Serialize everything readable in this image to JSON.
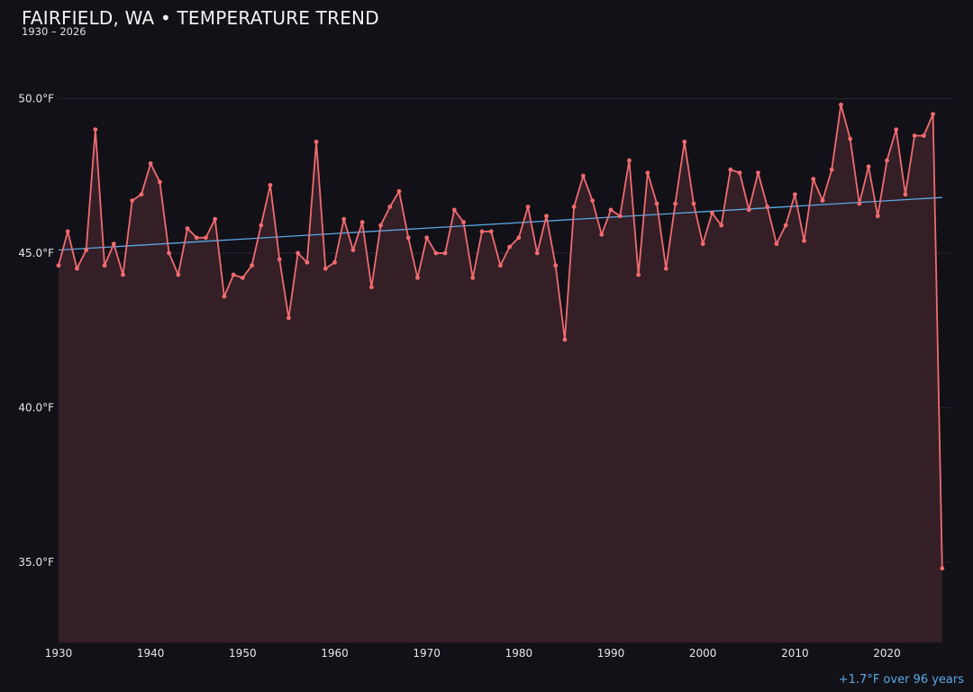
{
  "title": "FAIRFIELD, WA • TEMPERATURE TREND",
  "subtitle": "1930 – 2026",
  "trend_note": "+1.7°F over 96 years",
  "colors": {
    "background": "#121117",
    "line": "#f06b70",
    "area_fill": "#341f26",
    "trend": "#5aa9e6",
    "grid": "#2a2530"
  },
  "chart_data": {
    "type": "line",
    "title": "FAIRFIELD, WA • TEMPERATURE TREND",
    "subtitle": "1930 – 2026",
    "xlabel": "",
    "ylabel": "",
    "x_ticks": [
      1930,
      1940,
      1950,
      1960,
      1970,
      1980,
      1990,
      2000,
      2010,
      2020
    ],
    "y_ticks": [
      {
        "value": 35,
        "label": "35.0°F"
      },
      {
        "value": 40,
        "label": "40.0°F"
      },
      {
        "value": 45,
        "label": "45.0°F"
      },
      {
        "value": 50,
        "label": "50.0°F"
      }
    ],
    "xlim": [
      1930,
      2026.9
    ],
    "ylim": [
      32.4,
      52.2
    ],
    "grid": "horizontal",
    "x": [
      1930,
      1931,
      1932,
      1933,
      1934,
      1935,
      1936,
      1937,
      1938,
      1939,
      1940,
      1941,
      1942,
      1943,
      1944,
      1945,
      1946,
      1947,
      1948,
      1949,
      1950,
      1951,
      1952,
      1953,
      1954,
      1955,
      1956,
      1957,
      1958,
      1959,
      1960,
      1961,
      1962,
      1963,
      1964,
      1965,
      1966,
      1967,
      1968,
      1969,
      1970,
      1971,
      1972,
      1973,
      1974,
      1975,
      1976,
      1977,
      1978,
      1979,
      1980,
      1981,
      1982,
      1983,
      1984,
      1985,
      1986,
      1987,
      1988,
      1989,
      1990,
      1991,
      1992,
      1993,
      1994,
      1995,
      1996,
      1997,
      1998,
      1999,
      2000,
      2001,
      2002,
      2003,
      2004,
      2005,
      2006,
      2007,
      2008,
      2009,
      2010,
      2011,
      2012,
      2013,
      2014,
      2015,
      2016,
      2017,
      2018,
      2019,
      2020,
      2021,
      2022,
      2023,
      2024,
      2025,
      2026
    ],
    "series": [
      {
        "values": [
          44.6,
          45.7,
          44.5,
          45.1,
          49.0,
          44.6,
          45.3,
          44.3,
          46.7,
          46.9,
          47.9,
          47.3,
          45.0,
          44.3,
          45.8,
          45.5,
          45.5,
          46.1,
          43.6,
          44.3,
          44.2,
          44.6,
          45.9,
          47.2,
          44.8,
          42.9,
          45.0,
          44.7,
          48.6,
          44.5,
          44.7,
          46.1,
          45.1,
          46.0,
          43.9,
          45.9,
          46.5,
          47.0,
          45.5,
          44.2,
          45.5,
          45.0,
          45.0,
          46.4,
          46.0,
          44.2,
          45.7,
          45.7,
          44.6,
          45.2,
          45.5,
          46.5,
          45.0,
          46.2,
          44.6,
          42.2,
          46.5,
          47.5,
          46.7,
          45.6,
          46.4,
          46.2,
          48.0,
          44.3,
          47.6,
          46.6,
          44.5,
          46.6,
          48.6,
          46.6,
          45.3,
          46.3,
          45.9,
          47.7,
          47.6,
          46.4,
          47.6,
          46.5,
          45.3,
          45.9,
          46.9,
          45.4,
          47.4,
          46.7,
          47.7,
          49.8,
          48.7,
          46.6,
          47.8,
          46.2,
          48.0,
          49.0,
          46.9,
          48.8,
          48.8,
          49.5,
          34.8
        ]
      }
    ],
    "trend_line": {
      "x": [
        1930,
        2026
      ],
      "y": [
        45.1,
        46.8
      ]
    }
  }
}
